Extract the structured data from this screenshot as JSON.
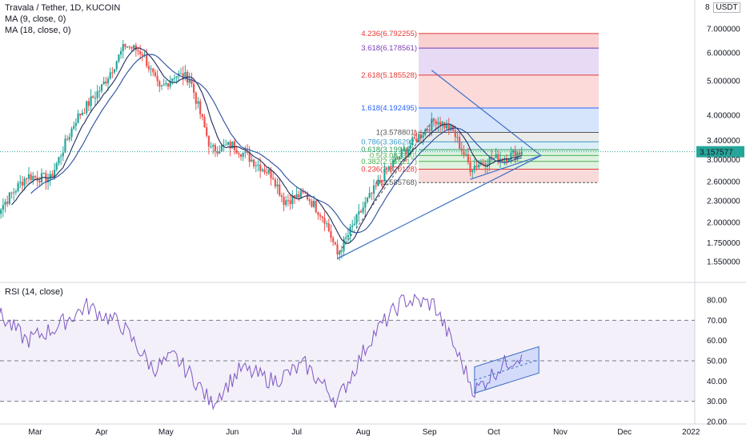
{
  "header": {
    "title": "Travala / Tether, 1D, KUCOIN",
    "ma1": "MA (9, close, 0)",
    "ma2": "MA (18, close, 0)",
    "currency": "USDT",
    "currency_prefix": "8"
  },
  "rsi_panel": {
    "label": "RSI (14, close)"
  },
  "colors": {
    "up": "#26a69a",
    "down": "#ef5350",
    "ma_line": "#1e2a5a",
    "trendline": "#3b6fc5",
    "rsi_line": "#7e57c2",
    "price_tag": "#26a69a"
  },
  "chart_data": [
    {
      "type": "candlestick",
      "symbol": "Travala / Tether",
      "interval": "1D",
      "exchange": "KUCOIN",
      "yscale": "log",
      "ylim": [
        1.45,
        8.2
      ],
      "y_ticks": [
        "7.000000",
        "6.000000",
        "5.000000",
        "4.000000",
        "3.400000",
        "3.000000",
        "2.600000",
        "2.300000",
        "2.000000",
        "1.750000",
        "1.550000"
      ],
      "x_ticks": [
        "Mar",
        "Apr",
        "May",
        "Jun",
        "Jul",
        "Aug",
        "Sep",
        "Oct",
        "Nov",
        "Dec",
        "2022"
      ],
      "last_price": "3.157577",
      "series_anchors": [
        {
          "date": "2021-02-10",
          "close": 2.1
        },
        {
          "date": "2021-02-25",
          "close": 2.7
        },
        {
          "date": "2021-03-08",
          "close": 2.65
        },
        {
          "date": "2021-03-20",
          "close": 3.9
        },
        {
          "date": "2021-04-01",
          "close": 4.8
        },
        {
          "date": "2021-04-12",
          "close": 6.3
        },
        {
          "date": "2021-04-20",
          "close": 6.0
        },
        {
          "date": "2021-04-28",
          "close": 4.7
        },
        {
          "date": "2021-05-05",
          "close": 5.2
        },
        {
          "date": "2021-05-12",
          "close": 5.1
        },
        {
          "date": "2021-05-22",
          "close": 3.2
        },
        {
          "date": "2021-06-01",
          "close": 3.3
        },
        {
          "date": "2021-06-10",
          "close": 3.0
        },
        {
          "date": "2021-06-20",
          "close": 2.7
        },
        {
          "date": "2021-06-25",
          "close": 2.3
        },
        {
          "date": "2021-07-05",
          "close": 2.4
        },
        {
          "date": "2021-07-14",
          "close": 2.05
        },
        {
          "date": "2021-07-20",
          "close": 1.62
        },
        {
          "date": "2021-08-01",
          "close": 2.2
        },
        {
          "date": "2021-08-12",
          "close": 2.8
        },
        {
          "date": "2021-08-25",
          "close": 3.4
        },
        {
          "date": "2021-09-04",
          "close": 3.9
        },
        {
          "date": "2021-09-12",
          "close": 3.6
        },
        {
          "date": "2021-09-20",
          "close": 2.85
        },
        {
          "date": "2021-09-28",
          "close": 3.0
        },
        {
          "date": "2021-10-06",
          "close": 3.05
        },
        {
          "date": "2021-10-14",
          "close": 3.16
        }
      ],
      "fibonacci": [
        {
          "label": "4.236(6.792255)",
          "value": 6.792255,
          "color": "#e53935",
          "fill": "#f8c9c9"
        },
        {
          "label": "3.618(6.178561)",
          "value": 6.178561,
          "color": "#7b3fb5",
          "fill": "#e2d4f3"
        },
        {
          "label": "2.618(5.185528)",
          "value": 5.185528,
          "color": "#e53935",
          "fill": "#fbd3d3"
        },
        {
          "label": "1.618(4.192495)",
          "value": 4.192495,
          "color": "#2962ff",
          "fill": "#cfe0fb"
        },
        {
          "label": "1(3.578801)",
          "value": 3.578801,
          "color": "#555555",
          "fill": "#e6e6e6"
        },
        {
          "label": "0.786(3.366292)",
          "value": 3.366292,
          "color": "#3d9acb",
          "fill": "#d6ecf5"
        },
        {
          "label": "0.618(3.199462)",
          "value": 3.199462,
          "color": "#2e9e5b",
          "fill": "#d3efdc"
        },
        {
          "label": "0.5(3.082340)",
          "value": 3.08234,
          "color": "#4caf50",
          "fill": "#d9f0da"
        },
        {
          "label": "0.382(2.965217)",
          "value": 2.965217,
          "color": "#4caf50",
          "fill": "#d9f0da"
        },
        {
          "label": "0.236(2.820128)",
          "value": 2.820128,
          "color": "#e53935",
          "fill": "#f7d3d3"
        },
        {
          "label": "0(2.585768)",
          "value": 2.585768,
          "color": "#555555",
          "fill": "none"
        }
      ]
    },
    {
      "type": "line",
      "name": "RSI (14, close)",
      "ylim": [
        20,
        85
      ],
      "y_ticks": [
        "80.00",
        "70.00",
        "60.00",
        "50.00",
        "40.00",
        "30.00",
        "20.00"
      ],
      "bands": [
        30,
        50,
        70
      ],
      "series_anchors": [
        {
          "date": "2021-02-10",
          "value": 75
        },
        {
          "date": "2021-02-25",
          "value": 60
        },
        {
          "date": "2021-03-10",
          "value": 66
        },
        {
          "date": "2021-03-25",
          "value": 77
        },
        {
          "date": "2021-04-10",
          "value": 68
        },
        {
          "date": "2021-04-25",
          "value": 46
        },
        {
          "date": "2021-05-05",
          "value": 52
        },
        {
          "date": "2021-05-15",
          "value": 40
        },
        {
          "date": "2021-05-22",
          "value": 29
        },
        {
          "date": "2021-06-05",
          "value": 46
        },
        {
          "date": "2021-06-20",
          "value": 40
        },
        {
          "date": "2021-07-05",
          "value": 48
        },
        {
          "date": "2021-07-20",
          "value": 30
        },
        {
          "date": "2021-08-05",
          "value": 62
        },
        {
          "date": "2021-08-20",
          "value": 80
        },
        {
          "date": "2021-09-03",
          "value": 78
        },
        {
          "date": "2021-09-12",
          "value": 58
        },
        {
          "date": "2021-09-22",
          "value": 35
        },
        {
          "date": "2021-10-05",
          "value": 48
        },
        {
          "date": "2021-10-14",
          "value": 53
        }
      ]
    }
  ]
}
